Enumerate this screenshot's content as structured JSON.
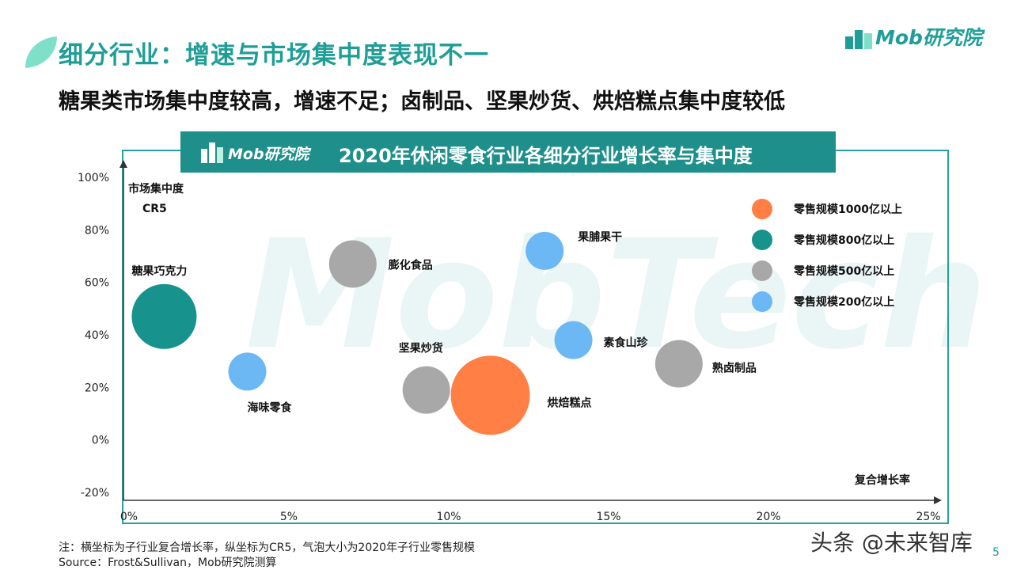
{
  "header": {
    "title": "细分行业：增速与市场集中度表现不一",
    "subtitle": "糖果类市场集中度较高，增速不足；卤制品、坚果炒货、烘焙糕点集中度较低",
    "brand": "Mob研究院"
  },
  "chart_header": {
    "brand": "Mob研究院",
    "title": "2020年休闲零食行业各细分行业增长率与集中度"
  },
  "watermark": "MobTech",
  "colors": {
    "teal_dark": "#1e8f8a",
    "teal_title": "#1f9e97",
    "bubble_1000": "#ff7f45",
    "bubble_800": "#17928c",
    "bubble_500": "#a8a8a8",
    "bubble_200": "#6cb8f5"
  },
  "chart_data": {
    "type": "scatter",
    "title": "2020年休闲零食行业各细分行业增长率与集中度",
    "xlabel": "复合增长率",
    "ylabel": "市场集中度",
    "ylabel_sub": "CR5",
    "x_ticks": [
      "0%",
      "5%",
      "10%",
      "15%",
      "20%",
      "25%"
    ],
    "y_ticks": [
      "100%",
      "80%",
      "60%",
      "40%",
      "20%",
      "0%",
      "-20%"
    ],
    "xlim": [
      0,
      25
    ],
    "ylim": [
      -20,
      100
    ],
    "grid": false,
    "legend_position": "top-right",
    "legend": [
      {
        "label": "零售规模1000亿以上",
        "color": "#ff7f45"
      },
      {
        "label": "零售规模800亿以上",
        "color": "#17928c"
      },
      {
        "label": "零售规模500亿以上",
        "color": "#a8a8a8"
      },
      {
        "label": "零售规模200亿以上",
        "color": "#6cb8f5"
      }
    ],
    "points": [
      {
        "name": "糖果巧克力",
        "x": 1.1,
        "y": 47,
        "tier": 800,
        "color": "#17928c"
      },
      {
        "name": "海味零食",
        "x": 3.7,
        "y": 26,
        "tier": 200,
        "color": "#6cb8f5"
      },
      {
        "name": "膨化食品",
        "x": 7.0,
        "y": 67,
        "tier": 500,
        "color": "#a8a8a8"
      },
      {
        "name": "坚果炒货",
        "x": 9.3,
        "y": 19,
        "tier": 500,
        "color": "#a8a8a8"
      },
      {
        "name": "烘焙糕点",
        "x": 11.3,
        "y": 17,
        "tier": 1000,
        "color": "#ff7f45"
      },
      {
        "name": "果脯果干",
        "x": 13.0,
        "y": 72,
        "tier": 200,
        "color": "#6cb8f5"
      },
      {
        "name": "素食山珍",
        "x": 13.9,
        "y": 38,
        "tier": 200,
        "color": "#6cb8f5"
      },
      {
        "name": "熟卤制品",
        "x": 17.2,
        "y": 29,
        "tier": 500,
        "color": "#a8a8a8"
      }
    ]
  },
  "notes": {
    "note": "注：横坐标为子行业复合增长率，纵坐标为CR5，气泡大小为2020年子行业零售规模",
    "source": "Source：Frost&Sullivan，Mob研究院测算"
  },
  "credit": "头条 @未来智库",
  "page_number": "5"
}
